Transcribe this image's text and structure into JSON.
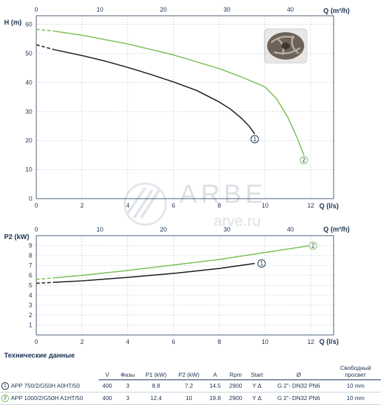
{
  "chart_data": [
    {
      "type": "line",
      "title": "",
      "ylabel": "H (m)",
      "xlabel": "Q (l/s)",
      "x2label": "Q (m³/h)",
      "xlim": [
        0,
        13
      ],
      "ylim": [
        0,
        63
      ],
      "xticks": [
        "0",
        "2",
        "4",
        "6",
        "8",
        "10",
        "12"
      ],
      "x2ticks": [
        "0",
        "10",
        "20",
        "30",
        "40"
      ],
      "yticks": [
        "0",
        "10",
        "20",
        "30",
        "40",
        "50",
        "60"
      ],
      "grid": true,
      "series": [
        {
          "name": "1",
          "color": "#1e1e1e",
          "dashed_until_x": 0.8,
          "x": [
            0,
            0.8,
            2,
            3,
            4,
            5,
            6,
            7,
            8,
            8.5,
            9,
            9.3,
            9.55
          ],
          "y": [
            53,
            51.3,
            49.3,
            47.4,
            45.2,
            42.8,
            40.2,
            37.3,
            33.3,
            30.8,
            27.5,
            25,
            22.3
          ],
          "label_x": 9.55,
          "label_y": 20.5
        },
        {
          "name": "2",
          "color": "#7cc05a",
          "dashed_until_x": 0.8,
          "x": [
            0,
            0.8,
            2,
            4,
            6,
            8,
            9,
            10,
            10.5,
            11,
            11.4,
            11.7
          ],
          "y": [
            58.3,
            57.7,
            56.3,
            53.3,
            49.5,
            44.8,
            41.8,
            38.5,
            34.5,
            28,
            21,
            15
          ],
          "label_x": 11.7,
          "label_y": 13.3
        }
      ]
    },
    {
      "type": "line",
      "title": "",
      "ylabel": "P2 (kW)",
      "xlabel": "Q (l/s)",
      "x2label": "Q (m³/h)",
      "xlim": [
        0,
        13
      ],
      "ylim": [
        0,
        10
      ],
      "xticks": [
        "0",
        "2",
        "4",
        "6",
        "8",
        "10",
        "12"
      ],
      "x2ticks": [
        "0",
        "10",
        "20",
        "30",
        "40"
      ],
      "yticks": [
        "1",
        "2",
        "3",
        "4",
        "5",
        "6",
        "7",
        "8",
        "9"
      ],
      "grid": true,
      "series": [
        {
          "name": "1",
          "color": "#1e1e1e",
          "dashed_until_x": 0.8,
          "x": [
            0,
            0.8,
            2,
            4,
            6,
            8,
            9.55
          ],
          "y": [
            5.2,
            5.3,
            5.45,
            5.8,
            6.2,
            6.7,
            7.2
          ],
          "label_x": 9.85,
          "label_y": 7.2
        },
        {
          "name": "2",
          "color": "#7cc05a",
          "dashed_until_x": 0.8,
          "x": [
            0,
            0.8,
            2,
            4,
            6,
            8,
            10,
            12
          ],
          "y": [
            5.6,
            5.75,
            6.0,
            6.5,
            7.05,
            7.6,
            8.3,
            9.0
          ],
          "label_x": 12.1,
          "label_y": 9.0
        }
      ]
    }
  ],
  "watermark": {
    "brand": "ARBE",
    "site": "arve.ru"
  },
  "tech": {
    "title": "Технические данные",
    "headers": [
      "",
      "V",
      "Фазы",
      "P1 (kW)",
      "P2 (kW)",
      "A",
      "Rpm",
      "Start",
      "Ø",
      "Свободный просвет"
    ],
    "rows": [
      {
        "marker": "1",
        "model": "APP 750/2/G50H A0HT/50",
        "V": "400",
        "phases": "3",
        "p1": "8.8",
        "p2": "7.2",
        "a": "14.5",
        "rpm": "2900",
        "start": "Y Δ",
        "conn": "G 2”- DN32 PN6",
        "free": "10 mm"
      },
      {
        "marker": "2",
        "model": "APP 1000/2/G50H A1HT/50",
        "V": "400",
        "phases": "3",
        "p1": "12.4",
        "p2": "10",
        "a": "19.8",
        "rpm": "2900",
        "start": "Y Δ",
        "conn": "G 2”- DN32 PN6",
        "free": "10 mm"
      }
    ]
  },
  "colors": {
    "axis": "#1a3050",
    "grid": "#a9b4c6",
    "series1": "#1e1e1e",
    "series2": "#7cc05a"
  },
  "icons": {
    "impeller": "impeller-photo"
  }
}
